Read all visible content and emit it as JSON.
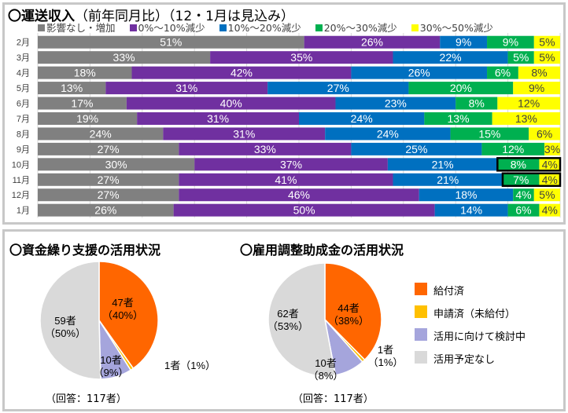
{
  "top": {
    "title": "〇運送収入",
    "subtitle": "（前年同月比）（12・1月は見込み）"
  },
  "bottom": {
    "pie1_title": "〇資金繰り支援の活用状況",
    "pie2_title": "〇雇用調整助成金の活用状況",
    "pie1_note": "（回答：117者）",
    "pie2_note": "（回答：117者）"
  },
  "chart_data": [
    {
      "type": "bar",
      "stacked": true,
      "orientation": "horizontal",
      "title": "運送収入（前年同月比）（12・1月は見込み）",
      "xlabel": "",
      "ylabel": "",
      "xlim": [
        0,
        100
      ],
      "grid": true,
      "legend_position": "top",
      "categories": [
        "2月",
        "3月",
        "4月",
        "5月",
        "6月",
        "7月",
        "8月",
        "9月",
        "10月",
        "11月",
        "12月",
        "1月"
      ],
      "series": [
        {
          "name": "影響なし・増加",
          "color": "#808080",
          "label_color": "#ffffff",
          "values": [
            51,
            33,
            18,
            13,
            17,
            19,
            24,
            27,
            30,
            27,
            27,
            26
          ]
        },
        {
          "name": "0%～10%減少",
          "color": "#7030a0",
          "label_color": "#ffffff",
          "values": [
            26,
            35,
            42,
            31,
            40,
            31,
            31,
            33,
            37,
            41,
            46,
            50
          ]
        },
        {
          "name": "10%～20%減少",
          "color": "#0070c0",
          "label_color": "#ffffff",
          "values": [
            9,
            22,
            26,
            27,
            23,
            24,
            24,
            25,
            21,
            21,
            18,
            14
          ]
        },
        {
          "name": "20%～30%減少",
          "color": "#00b050",
          "label_color": "#ffffff",
          "values": [
            9,
            5,
            6,
            20,
            8,
            13,
            15,
            12,
            8,
            7,
            4,
            6
          ]
        },
        {
          "name": "30%～50%減少",
          "color": "#ffff00",
          "label_color": "#404040",
          "values": [
            5,
            5,
            8,
            9,
            12,
            13,
            6,
            3,
            4,
            4,
            5,
            4
          ]
        }
      ],
      "highlighted_segments": [
        {
          "category": "10月",
          "series": [
            "20%～30%減少",
            "30%～50%減少"
          ]
        },
        {
          "category": "11月",
          "series": [
            "20%～30%減少",
            "30%～50%減少"
          ]
        }
      ]
    },
    {
      "type": "pie",
      "title": "資金繰り支援の活用状況",
      "total_label": "回答：117者",
      "slices": [
        {
          "name": "給付済",
          "count": 47,
          "percent": 40,
          "label": "47者",
          "pct_label": "（40%）",
          "color": "#ff6600"
        },
        {
          "name": "申請済（未給付）",
          "count": 1,
          "percent": 1,
          "label": "1者（1%）",
          "color": "#ffc000"
        },
        {
          "name": "活用に向けて検討中",
          "count": 10,
          "percent": 9,
          "label": "10者",
          "pct_label": "（9%）",
          "color": "#a5a5dc"
        },
        {
          "name": "活用予定なし",
          "count": 59,
          "percent": 50,
          "label": "59者",
          "pct_label": "（50%）",
          "color": "#d9d9d9"
        }
      ]
    },
    {
      "type": "pie",
      "title": "雇用調整助成金の活用状況",
      "total_label": "回答：117者",
      "slices": [
        {
          "name": "給付済",
          "count": 44,
          "percent": 38,
          "label": "44者",
          "pct_label": "（38%）",
          "color": "#ff6600"
        },
        {
          "name": "申請済（未給付）",
          "count": 1,
          "percent": 1,
          "label": "1者",
          "pct_label": "（1%）",
          "color": "#ffc000"
        },
        {
          "name": "活用に向けて検討中",
          "count": 10,
          "percent": 8,
          "label": "10者",
          "pct_label": "（8%）",
          "color": "#a5a5dc"
        },
        {
          "name": "活用予定なし",
          "count": 62,
          "percent": 53,
          "label": "62者",
          "pct_label": "（53%）",
          "color": "#d9d9d9"
        }
      ]
    }
  ],
  "pie_legend": [
    {
      "label": "給付済",
      "color": "#ff6600"
    },
    {
      "label": "申請済（未給付）",
      "color": "#ffc000"
    },
    {
      "label": "活用に向けて検討中",
      "color": "#a5a5dc"
    },
    {
      "label": "活用予定なし",
      "color": "#d9d9d9"
    }
  ]
}
